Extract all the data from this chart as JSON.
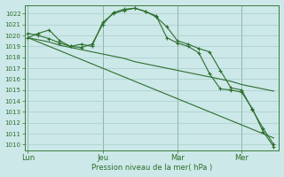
{
  "bg_color": "#cce8e8",
  "grid_color": "#aacccc",
  "line_color": "#2d6e2d",
  "axis_label": "Pression niveau de la mer( hPa )",
  "x_ticks_labels": [
    "Lun",
    "Jeu",
    "Mar",
    "Mer"
  ],
  "x_ticks_pos": [
    0,
    7,
    14,
    20
  ],
  "xlim": [
    -0.3,
    23.5
  ],
  "ylim": [
    1009.5,
    1022.8
  ],
  "yticks": [
    1010,
    1011,
    1012,
    1013,
    1014,
    1015,
    1016,
    1017,
    1018,
    1019,
    1020,
    1021,
    1022
  ],
  "line1_x": [
    0,
    1,
    2,
    3,
    4,
    5,
    6,
    7,
    8,
    9,
    10,
    11,
    12,
    13,
    14,
    15,
    16,
    17,
    18,
    19,
    20,
    21,
    22,
    23
  ],
  "line1_y": [
    1019.8,
    1020.2,
    1020.5,
    1019.5,
    1019.0,
    1019.2,
    1019.0,
    1021.2,
    1022.0,
    1022.3,
    1022.5,
    1022.2,
    1021.7,
    1020.8,
    1019.5,
    1019.2,
    1018.8,
    1018.5,
    1016.8,
    1015.2,
    1015.0,
    1013.2,
    1011.5,
    1010.0
  ],
  "line2_x": [
    0,
    1,
    2,
    3,
    4,
    5,
    6,
    7,
    8,
    9,
    10,
    11,
    12,
    13,
    14,
    15,
    16,
    17,
    18,
    19,
    20,
    21,
    22,
    23
  ],
  "line2_y": [
    1019.8,
    1019.6,
    1019.4,
    1019.1,
    1018.9,
    1018.7,
    1018.5,
    1018.3,
    1018.1,
    1017.9,
    1017.6,
    1017.4,
    1017.2,
    1017.0,
    1016.8,
    1016.6,
    1016.4,
    1016.2,
    1016.0,
    1015.8,
    1015.5,
    1015.3,
    1015.1,
    1014.9
  ],
  "line3_x": [
    0,
    1,
    2,
    3,
    4,
    5,
    6,
    7,
    8,
    9,
    10,
    11,
    12,
    13,
    14,
    15,
    16,
    17,
    18,
    19,
    20,
    21,
    22,
    23
  ],
  "line3_y": [
    1019.8,
    1019.4,
    1019.0,
    1018.6,
    1018.2,
    1017.8,
    1017.4,
    1017.0,
    1016.6,
    1016.2,
    1015.8,
    1015.4,
    1015.0,
    1014.6,
    1014.2,
    1013.8,
    1013.4,
    1013.0,
    1012.6,
    1012.2,
    1011.8,
    1011.4,
    1011.0,
    1010.6
  ],
  "line4_x": [
    0,
    1,
    2,
    3,
    4,
    5,
    6,
    7,
    8,
    9,
    10,
    11,
    12,
    13,
    14,
    15,
    16,
    17,
    18,
    19,
    20,
    21,
    22,
    23
  ],
  "line4_y": [
    1020.2,
    1020.0,
    1019.7,
    1019.3,
    1019.0,
    1018.9,
    1019.2,
    1021.0,
    1022.1,
    1022.4,
    1022.5,
    1022.2,
    1021.8,
    1019.8,
    1019.3,
    1019.0,
    1018.4,
    1016.5,
    1015.1,
    1015.0,
    1014.8,
    1013.3,
    1011.2,
    1009.8
  ]
}
